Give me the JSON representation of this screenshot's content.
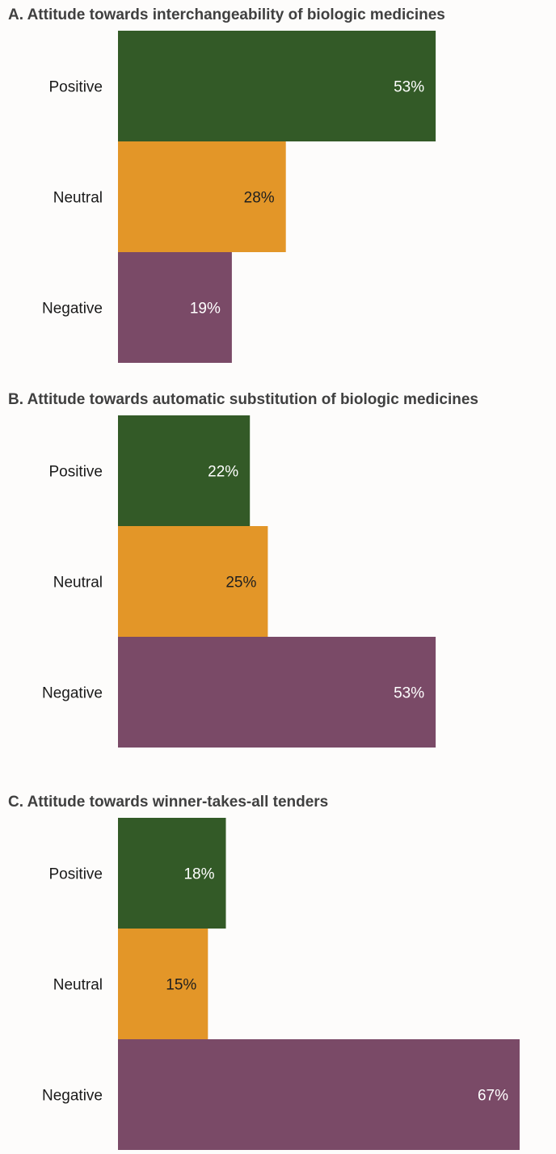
{
  "colors": {
    "Positive": "#335a27",
    "Neutral": "#e39628",
    "Negative": "#7a4a67",
    "label_light": "#ffffff",
    "label_dark": "#1f1f1f"
  },
  "chart_data": [
    {
      "type": "bar",
      "orientation": "horizontal",
      "title": "A. Attitude towards interchangeability of biologic medicines",
      "categories": [
        "Positive",
        "Neutral",
        "Negative"
      ],
      "values": [
        53,
        28,
        19
      ],
      "labels": [
        "53%",
        "28%",
        "19%"
      ],
      "xlim": [
        0,
        67
      ],
      "grid": false
    },
    {
      "type": "bar",
      "orientation": "horizontal",
      "title": "B. Attitude towards automatic substitution of biologic medicines",
      "categories": [
        "Positive",
        "Neutral",
        "Negative"
      ],
      "values": [
        22,
        25,
        53
      ],
      "labels": [
        "22%",
        "25%",
        "53%"
      ],
      "xlim": [
        0,
        67
      ],
      "grid": false
    },
    {
      "type": "bar",
      "orientation": "horizontal",
      "title": "C. Attitude towards winner-takes-all tenders",
      "categories": [
        "Positive",
        "Neutral",
        "Negative"
      ],
      "values": [
        18,
        15,
        67
      ],
      "labels": [
        "18%",
        "15%",
        "67%"
      ],
      "xlim": [
        0,
        67
      ],
      "grid": false
    }
  ]
}
